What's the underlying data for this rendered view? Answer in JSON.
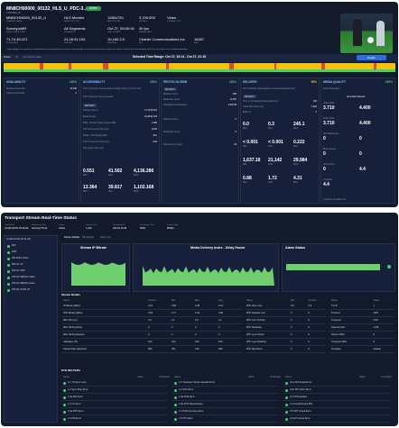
{
  "top": {
    "channel": "MN8CH00000_00132_HLS_U_PDC-3...",
    "channel_sub": "CHANNEL ID",
    "status": "Active",
    "row1": [
      {
        "v": "MNBCH00000_00132_U",
        "l": "CHANNEL NAME"
      },
      {
        "v": "HLS Monitor",
        "l": "MONITOR TYPE"
      },
      {
        "v": "1280x720",
        "l": "RESOLUTION"
      },
      {
        "v": "3,700,000",
        "l": "BITRATE"
      },
      {
        "v": "Video",
        "l": "STREAM TYPE"
      }
    ],
    "row2": [
      {
        "v": "SurveyorMR",
        "l": "MONITORING POINT"
      },
      {
        "v": "All Segments",
        "l": "SEGMENTS"
      },
      {
        "v": "Oct 27, 05:00:16",
        "l": "LAST UPDATE"
      },
      {
        "v": "30 fps",
        "l": "FRAME RATE"
      }
    ],
    "row3": [
      {
        "v": "71.74.45.221",
        "l": "IP ADDRESS"
      },
      {
        "v": "24.28.91.153",
        "l": "SERVER"
      },
      {
        "v": "10,160.2.5",
        "l": "GATEWAY"
      },
      {
        "v": "Charter Communications Inc",
        "l": "ISP"
      },
      {
        "v": "16267",
        "l": "ASN"
      }
    ],
    "url": "https://edge-mn.spectrum.net/linear-silvercity.spectrum.com/LIVE/2013/qlv-tv/00132/dmn/00132-video-3079600.m3u8?cdn=cdn-36e&p=3091-5718-460a-b47b-b4e94b19a2a9"
  },
  "timeline": {
    "tab1": "8 Hour",
    "tab2": "All",
    "tab3": "ALL Session Data",
    "range": "Selected Time Range: Oct 27, 15:14 - Oct 27, 21:15",
    "details": "Details"
  },
  "panels": {
    "availability": {
      "title": "AVAILABILITY",
      "pct": "100%",
      "items": [
        {
          "l": "Monitored Seconds",
          "v": "21,540"
        },
        {
          "l": "Total Live Seconds",
          "v": "0"
        }
      ]
    },
    "accessibility": {
      "title": "ACCESSIBILITY",
      "pct": "100%",
      "notes": [
        "TCP connection time exceeded multiple times in 10 min total",
        "TCP connection time exceeded"
      ],
      "metrics": "METRICS",
      "items": [
        {
          "l": "Manifest Server",
          "v": "71.74.45.221"
        },
        {
          "l": "Media Server",
          "v": "24.28.91.153"
        },
        {
          "l": "DNS - Domain Name Service Main",
          "v": "2.306"
        },
        {
          "l": "TCP Connection Time (ms)",
          "v": "16.06"
        },
        {
          "l": "Media - CH Domain Main",
          "v": "43.2"
        },
        {
          "l": "TCP Connection Time (ms)",
          "v": "0.94"
        },
        {
          "l": "SSL Query Time (ms)",
          "v": ""
        }
      ],
      "big": [
        {
          "v": "0.551",
          "l": "MIN"
        },
        {
          "v": "41.502",
          "l": "AVG"
        },
        {
          "v": "4,136.286",
          "l": "MAX"
        }
      ],
      "big2": [
        {
          "v": "13.364",
          "l": "MIN"
        },
        {
          "v": "39.817",
          "l": "AVG"
        },
        {
          "v": "1,102.168",
          "l": "MAX"
        }
      ]
    },
    "protocol": {
      "title": "PROTOCOL/DRM",
      "pct": "100%",
      "metrics": "METRICS",
      "items": [
        {
          "l": "Manifest Count",
          "v": "925"
        },
        {
          "l": "Media File Count",
          "v": "11,357"
        },
        {
          "l": "Total Bytes Downloaded",
          "v": "4,410.08"
        },
        {
          "l": "Manifest Count",
          "v": "0"
        },
        {
          "l": "Media File Count",
          "v": "0"
        },
        {
          "l": "Discontinuity Count",
          "v": "43"
        }
      ]
    },
    "delivery": {
      "title": "DELIVERY",
      "pct": "99%",
      "notes": [
        "DTT media file download time exceeded playback time"
      ],
      "metrics": "METRICS",
      "items": [
        {
          "l": "Time to 1st Segment Download (ms)",
          "v": "233"
        },
        {
          "l": "Video Start Time (ms)",
          "v": "1,823"
        },
        {
          "l": "Buffer %",
          "v": "0"
        }
      ],
      "big": [
        {
          "v": "0.0",
          "l": "MIN"
        },
        {
          "v": "0.3",
          "l": "AVG"
        },
        {
          "v": "245.1",
          "l": "MAX"
        }
      ],
      "big2": [
        {
          "v": "< 0.001",
          "l": "MIN"
        },
        {
          "v": "< 0.001",
          "l": "AVG"
        },
        {
          "v": "0.222",
          "l": "MAX"
        }
      ],
      "big3": [
        {
          "v": "1,637.18",
          "l": "MIN"
        },
        {
          "v": "21,142",
          "l": "AVG"
        },
        {
          "v": "29,984",
          "l": "MAX"
        }
      ],
      "big4": [
        {
          "v": "0.88",
          "l": "MIN"
        },
        {
          "v": "1.72",
          "l": "AVG"
        },
        {
          "v": "4.31",
          "l": "MAX"
        }
      ]
    },
    "media": {
      "title": "MEDIA QUALITY",
      "pct": "100%",
      "audio": "Audio Channel(s)",
      "note": "No Audio Channels",
      "items": [
        {
          "l": "Video MOS",
          "a": "3.710",
          "b": "4.400"
        },
        {
          "l": "Audio MOS",
          "a": "3.710",
          "b": "4.400"
        },
        {
          "l": "Pixel Blockiness",
          "a": "0",
          "b": "0"
        },
        {
          "l": "Black Screen",
          "a": "0",
          "b": "0"
        },
        {
          "l": "Still Frames",
          "a": "0",
          "b": "4.4"
        },
        {
          "l": "Loudness",
          "a": "4.4",
          "b": ""
        }
      ],
      "foot": "Loudness Deviation 0.0"
    }
  },
  "transport": {
    "title": "Transport Stream Real-Time Status",
    "info": [
      {
        "l": "Channel ID",
        "v": "CCHD-SCTE 35-21HN"
      },
      {
        "l": "Monitoring Point",
        "v": "SurveyorTS-1k"
      },
      {
        "l": "Status",
        "v": "Active"
      },
      {
        "l": "Session Port",
        "v": "1,013"
      },
      {
        "l": "Destination IP",
        "v": "224.10.16.36"
      },
      {
        "l": "Destination Port",
        "v": "5000"
      },
      {
        "l": "Stream Type",
        "v": "MPEG"
      }
    ],
    "tabs": [
      "Stream Details",
      "PID Details",
      "Alarm Log"
    ],
    "tree": [
      "CCHD-SCTE 35-21 HN",
      "PAT",
      "PMT",
      "PID 8191: NULL",
      "PID 16: ST",
      "PID 32: PMT",
      "PID 33: MPEG2 Video",
      "PID 34: MPEG2 Audio",
      "PID 39: SCTE 35"
    ],
    "charts": [
      "Stream IP Bitrate",
      "Media Delivery Index - Delay Factor",
      "Alarm Status"
    ],
    "table_title": "Stream Details",
    "cols": [
      "Name",
      "Current",
      "Min",
      "Max",
      "Avg"
    ],
    "rows": [
      [
        "IP Bitrate (Mb/s)",
        "4.01",
        "3.80",
        "4.38",
        "4.01"
      ],
      [
        "RTP Bitrate (Mb/s)",
        "3.96",
        "3.77",
        "4.33",
        "3.96"
      ],
      [
        "MDI: DF (ms)",
        "4.6",
        "2.1",
        "6.0",
        "4.1"
      ],
      [
        "MDI: MLR (pkts/s)",
        "0",
        "0",
        "0",
        "0"
      ],
      [
        "MDI: MLR (pkts/sec)",
        "0",
        "0",
        "0",
        "0"
      ],
      [
        "Utilization (%)",
        "100",
        "100",
        "100",
        "100"
      ],
      [
        "Packet Rate (pkts/sec)",
        "380",
        "361",
        "416",
        "380"
      ]
    ],
    "cols2": [
      "Name",
      "Min",
      "24 Hour"
    ],
    "rows2": [
      [
        "RTP Jitter (ms)",
        "0.9",
        "0.9"
      ],
      [
        "RTP Packets Lost",
        "0",
        "0"
      ],
      [
        "RTP Out Of Order",
        "0",
        "0"
      ],
      [
        "RTP Duplicate",
        "0",
        "0"
      ],
      [
        "RTP Loss Period",
        "0",
        "0"
      ],
      [
        "RTP Loss Distance",
        "0",
        "0"
      ],
      [
        "RTP Max Burst",
        "0",
        "0"
      ]
    ],
    "cols3": [
      "Name",
      "Value"
    ],
    "rows3": [
      [
        "TS ID",
        "1"
      ],
      [
        "Protocol",
        "UDP"
      ],
      [
        "Transport",
        "RTP"
      ],
      [
        "Payload Size",
        "1316"
      ],
      [
        "Stream PIDs",
        "6"
      ],
      [
        "Transport PIDs",
        "5"
      ],
      [
        "Template",
        "Default"
      ]
    ],
    "etr": "ETR 290 P1/P2",
    "etr_cols": [
      "Name",
      "Value",
      "Threshold"
    ],
    "etr1": [
      "1.1 TS Sync Loss",
      "1.2 Sync Byte Error",
      "1.3a PAT Error",
      "1.4 CC Error",
      "1.5a PMT Error",
      "1.6 PID Error"
    ],
    "etr2": [
      "2.1 Transport Stream Header Error",
      "2.2 CRC Error",
      "2.3a PCR Error",
      "2.3b PCR Discontinuity",
      "2.4 PCR Accuracy Error",
      "2.5 PTS Error"
    ],
    "etr3": [
      "3.1a NIT Actual Error",
      "3.1b NIT Other Error",
      "3.2 SI Repetition",
      "3.4 Unreferenced PID",
      "3.5 SDT Actual Error",
      "3.6 EIT Actual Error"
    ]
  }
}
